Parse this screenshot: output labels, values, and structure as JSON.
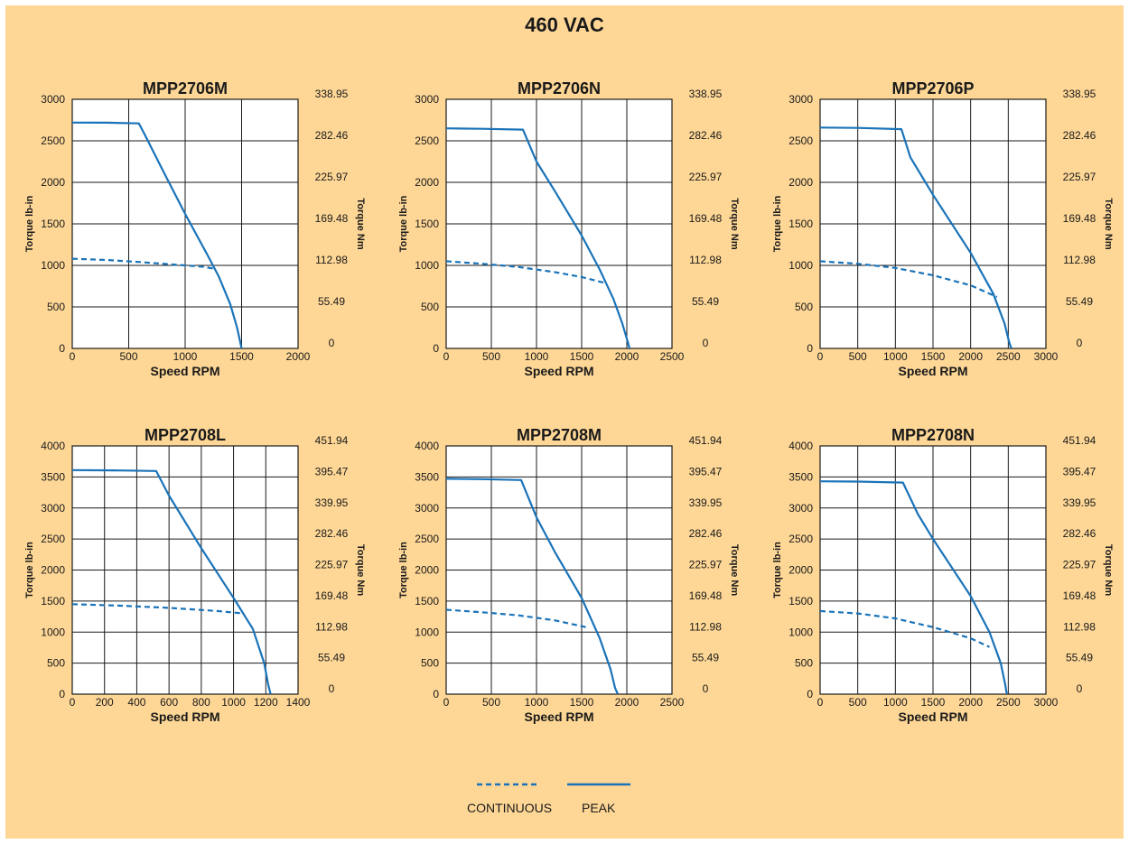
{
  "title": "460 VAC",
  "colors": {
    "background": "#fed796",
    "curve": "#1a73b8",
    "plot_bg": "#ffffff",
    "grid": "#1a1a1a"
  },
  "legend": {
    "continuous": "CONTINUOUS",
    "peak": "PEAK"
  },
  "chart_data": [
    {
      "type": "line",
      "title": "MPP2706M",
      "xlabel": "Speed RPM",
      "ylabel": "Torque lb-in",
      "ylabel_right": "Torque Nm",
      "xlim": [
        0,
        2000
      ],
      "ylim": [
        0,
        3000
      ],
      "x_ticks": [
        "0",
        "500",
        "1000",
        "1500",
        "2000"
      ],
      "y_ticks": [
        "0",
        "500",
        "1000",
        "1500",
        "2000",
        "2500",
        "3000"
      ],
      "y_ticks_right": [
        "0",
        "55.49",
        "112.98",
        "169.48",
        "225.97",
        "282.46",
        "338.95"
      ],
      "series": [
        {
          "name": "CONTINUOUS",
          "style": "dashed",
          "points": [
            [
              0,
              1080
            ],
            [
              300,
              1065
            ],
            [
              600,
              1040
            ],
            [
              900,
              1010
            ],
            [
              1150,
              985
            ],
            [
              1260,
              960
            ]
          ]
        },
        {
          "name": "PEAK",
          "style": "solid",
          "points": [
            [
              0,
              2720
            ],
            [
              300,
              2718
            ],
            [
              590,
              2710
            ],
            [
              640,
              2580
            ],
            [
              800,
              2150
            ],
            [
              1000,
              1620
            ],
            [
              1200,
              1120
            ],
            [
              1300,
              860
            ],
            [
              1400,
              530
            ],
            [
              1460,
              250
            ],
            [
              1490,
              60
            ],
            [
              1500,
              0
            ]
          ]
        }
      ]
    },
    {
      "type": "line",
      "title": "MPP2706N",
      "xlabel": "Speed RPM",
      "ylabel": "Torque lb-in",
      "ylabel_right": "Torque Nm",
      "xlim": [
        0,
        2500
      ],
      "ylim": [
        0,
        3000
      ],
      "x_ticks": [
        "0",
        "500",
        "1000",
        "1500",
        "2000",
        "2500"
      ],
      "y_ticks": [
        "0",
        "500",
        "1000",
        "1500",
        "2000",
        "2500",
        "3000"
      ],
      "y_ticks_right": [
        "0",
        "55.49",
        "112.98",
        "169.48",
        "225.97",
        "282.46",
        "338.95"
      ],
      "series": [
        {
          "name": "CONTINUOUS",
          "style": "dashed",
          "points": [
            [
              0,
              1050
            ],
            [
              400,
              1020
            ],
            [
              800,
              980
            ],
            [
              1200,
              920
            ],
            [
              1500,
              860
            ],
            [
              1750,
              790
            ]
          ]
        },
        {
          "name": "PEAK",
          "style": "solid",
          "points": [
            [
              0,
              2650
            ],
            [
              400,
              2645
            ],
            [
              850,
              2635
            ],
            [
              1000,
              2250
            ],
            [
              1200,
              1900
            ],
            [
              1500,
              1360
            ],
            [
              1700,
              950
            ],
            [
              1850,
              600
            ],
            [
              1950,
              300
            ],
            [
              2010,
              80
            ],
            [
              2030,
              0
            ]
          ]
        }
      ]
    },
    {
      "type": "line",
      "title": "MPP2706P",
      "xlabel": "Speed RPM",
      "ylabel": "Torque lb-in",
      "ylabel_right": "Torque Nm",
      "xlim": [
        0,
        3000
      ],
      "ylim": [
        0,
        3000
      ],
      "x_ticks": [
        "0",
        "500",
        "1000",
        "1500",
        "2000",
        "2500",
        "3000"
      ],
      "y_ticks": [
        "0",
        "500",
        "1000",
        "1500",
        "2000",
        "2500",
        "3000"
      ],
      "y_ticks_right": [
        "0",
        "55.49",
        "112.98",
        "169.48",
        "225.97",
        "282.46",
        "338.95"
      ],
      "series": [
        {
          "name": "CONTINUOUS",
          "style": "dashed",
          "points": [
            [
              0,
              1050
            ],
            [
              500,
              1020
            ],
            [
              1000,
              970
            ],
            [
              1500,
              880
            ],
            [
              2000,
              760
            ],
            [
              2350,
              620
            ]
          ]
        },
        {
          "name": "PEAK",
          "style": "solid",
          "points": [
            [
              0,
              2660
            ],
            [
              500,
              2655
            ],
            [
              1080,
              2640
            ],
            [
              1200,
              2300
            ],
            [
              1500,
              1850
            ],
            [
              2000,
              1150
            ],
            [
              2300,
              660
            ],
            [
              2450,
              300
            ],
            [
              2510,
              80
            ],
            [
              2540,
              0
            ]
          ]
        }
      ]
    },
    {
      "type": "line",
      "title": "MPP2708L",
      "xlabel": "Speed RPM",
      "ylabel": "Torque lb-in",
      "ylabel_right": "Torque Nm",
      "xlim": [
        0,
        1400
      ],
      "ylim": [
        0,
        4000
      ],
      "x_ticks": [
        "0",
        "200",
        "400",
        "600",
        "800",
        "1000",
        "1200",
        "1400"
      ],
      "y_ticks": [
        "0",
        "500",
        "1000",
        "1500",
        "2000",
        "2500",
        "3000",
        "3500",
        "4000"
      ],
      "y_ticks_right": [
        "0",
        "55.49",
        "112.98",
        "169.48",
        "225.97",
        "282.46",
        "339.95",
        "395.47",
        "451.94"
      ],
      "series": [
        {
          "name": "CONTINUOUS",
          "style": "dashed",
          "points": [
            [
              0,
              1450
            ],
            [
              300,
              1425
            ],
            [
              600,
              1390
            ],
            [
              900,
              1340
            ],
            [
              1060,
              1300
            ]
          ]
        },
        {
          "name": "PEAK",
          "style": "solid",
          "points": [
            [
              0,
              3610
            ],
            [
              300,
              3605
            ],
            [
              520,
              3595
            ],
            [
              600,
              3200
            ],
            [
              800,
              2350
            ],
            [
              1000,
              1550
            ],
            [
              1120,
              1050
            ],
            [
              1190,
              500
            ],
            [
              1215,
              150
            ],
            [
              1230,
              0
            ]
          ]
        }
      ]
    },
    {
      "type": "line",
      "title": "MPP2708M",
      "xlabel": "Speed RPM",
      "ylabel": "Torque lb-in",
      "ylabel_right": "Torque Nm",
      "xlim": [
        0,
        2500
      ],
      "ylim": [
        0,
        4000
      ],
      "x_ticks": [
        "0",
        "500",
        "1000",
        "1500",
        "2000",
        "2500"
      ],
      "y_ticks": [
        "0",
        "500",
        "1000",
        "1500",
        "2000",
        "2500",
        "3000",
        "3500",
        "4000"
      ],
      "y_ticks_right": [
        "0",
        "55.49",
        "112.98",
        "169.48",
        "225.97",
        "282.46",
        "339.95",
        "395.47",
        "451.94"
      ],
      "series": [
        {
          "name": "CONTINUOUS",
          "style": "dashed",
          "points": [
            [
              0,
              1360
            ],
            [
              400,
              1320
            ],
            [
              800,
              1270
            ],
            [
              1200,
              1190
            ],
            [
              1550,
              1080
            ]
          ]
        },
        {
          "name": "PEAK",
          "style": "solid",
          "points": [
            [
              0,
              3470
            ],
            [
              400,
              3465
            ],
            [
              830,
              3450
            ],
            [
              1000,
              2850
            ],
            [
              1200,
              2300
            ],
            [
              1500,
              1550
            ],
            [
              1700,
              900
            ],
            [
              1820,
              400
            ],
            [
              1870,
              100
            ],
            [
              1900,
              0
            ]
          ]
        }
      ]
    },
    {
      "type": "line",
      "title": "MPP2708N",
      "xlabel": "Speed RPM",
      "ylabel": "Torque lb-in",
      "ylabel_right": "Torque Nm",
      "xlim": [
        0,
        3000
      ],
      "ylim": [
        0,
        4000
      ],
      "x_ticks": [
        "0",
        "500",
        "1000",
        "1500",
        "2000",
        "2500",
        "3000"
      ],
      "y_ticks": [
        "0",
        "500",
        "1000",
        "1500",
        "2000",
        "2500",
        "3000",
        "3500",
        "4000"
      ],
      "y_ticks_right": [
        "0",
        "55.49",
        "112.98",
        "169.48",
        "225.97",
        "282.46",
        "339.95",
        "395.47",
        "451.94"
      ],
      "series": [
        {
          "name": "CONTINUOUS",
          "style": "dashed",
          "points": [
            [
              0,
              1340
            ],
            [
              500,
              1300
            ],
            [
              1000,
              1220
            ],
            [
              1500,
              1080
            ],
            [
              2000,
              900
            ],
            [
              2250,
              760
            ]
          ]
        },
        {
          "name": "PEAK",
          "style": "solid",
          "points": [
            [
              0,
              3430
            ],
            [
              500,
              3425
            ],
            [
              1100,
              3410
            ],
            [
              1300,
              2900
            ],
            [
              1500,
              2500
            ],
            [
              2000,
              1580
            ],
            [
              2250,
              1000
            ],
            [
              2400,
              500
            ],
            [
              2460,
              150
            ],
            [
              2480,
              0
            ]
          ]
        }
      ]
    }
  ]
}
